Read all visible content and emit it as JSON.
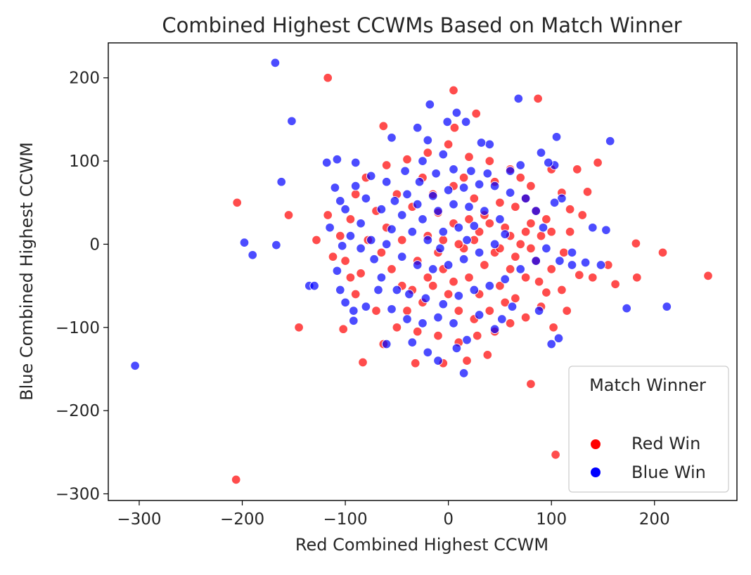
{
  "chart_data": {
    "type": "scatter",
    "title": "Combined Highest CCWMs Based on Match Winner",
    "xlabel": "Red Combined Highest CCWM",
    "ylabel": "Blue Combined Highest CCWM",
    "xlim": [
      -330,
      280
    ],
    "ylim": [
      -308,
      242
    ],
    "xticks": [
      -300,
      -200,
      -100,
      0,
      100,
      200
    ],
    "yticks": [
      -300,
      -200,
      -100,
      0,
      100,
      200
    ],
    "xtick_labels": [
      "−300",
      "−200",
      "−100",
      "0",
      "100",
      "200"
    ],
    "ytick_labels": [
      "−300",
      "−200",
      "−100",
      "0",
      "100",
      "200"
    ],
    "grid": false,
    "legend": {
      "title": "Match Winner",
      "placement": "lower-right",
      "entries": [
        {
          "label": "Red Win",
          "color": "#ff0000"
        },
        {
          "label": "Blue Win",
          "color": "#0000ff"
        }
      ]
    },
    "series": [
      {
        "name": "Red Win",
        "color": "#ff0000",
        "points": [
          [
            -117,
            200
          ],
          [
            5,
            185
          ],
          [
            87,
            175
          ],
          [
            27,
            157
          ],
          [
            -63,
            142
          ],
          [
            6,
            140
          ],
          [
            -205,
            50
          ],
          [
            -155,
            35
          ],
          [
            -145,
            -100
          ],
          [
            -206,
            -283
          ],
          [
            -117,
            35
          ],
          [
            -128,
            5
          ],
          [
            -112,
            -15
          ],
          [
            -102,
            -102
          ],
          [
            -83,
            -142
          ],
          [
            -63,
            -120
          ],
          [
            -32,
            -143
          ],
          [
            -5,
            -143
          ],
          [
            18,
            -140
          ],
          [
            38,
            -133
          ],
          [
            80,
            -168
          ],
          [
            104,
            -253
          ],
          [
            102,
            -100
          ],
          [
            115,
            -80
          ],
          [
            127,
            -37
          ],
          [
            140,
            -40
          ],
          [
            155,
            -25
          ],
          [
            162,
            -48
          ],
          [
            183,
            -40
          ],
          [
            182,
            1
          ],
          [
            208,
            -10
          ],
          [
            252,
            -38
          ],
          [
            135,
            63
          ],
          [
            145,
            98
          ],
          [
            125,
            90
          ],
          [
            130,
            35
          ],
          [
            118,
            42
          ],
          [
            100,
            90
          ],
          [
            110,
            62
          ],
          [
            118,
            15
          ],
          [
            112,
            -10
          ],
          [
            100,
            -30
          ],
          [
            95,
            -58
          ],
          [
            110,
            -55
          ],
          [
            90,
            -75
          ],
          [
            75,
            -88
          ],
          [
            60,
            -95
          ],
          [
            45,
            -105
          ],
          [
            28,
            -110
          ],
          [
            10,
            -118
          ],
          [
            -10,
            -110
          ],
          [
            -30,
            -105
          ],
          [
            -50,
            -100
          ],
          [
            -70,
            -80
          ],
          [
            -90,
            -60
          ],
          [
            -95,
            -40
          ],
          [
            -100,
            -20
          ],
          [
            -105,
            10
          ],
          [
            -95,
            30
          ],
          [
            -90,
            60
          ],
          [
            -80,
            80
          ],
          [
            -60,
            95
          ],
          [
            -40,
            102
          ],
          [
            -20,
            110
          ],
          [
            0,
            120
          ],
          [
            20,
            105
          ],
          [
            40,
            100
          ],
          [
            60,
            90
          ],
          [
            80,
            70
          ],
          [
            -10,
            38
          ],
          [
            -20,
            10
          ],
          [
            5,
            25
          ],
          [
            15,
            -5
          ],
          [
            30,
            15
          ],
          [
            45,
            -10
          ],
          [
            55,
            20
          ],
          [
            70,
            0
          ],
          [
            80,
            25
          ],
          [
            90,
            10
          ],
          [
            -30,
            -20
          ],
          [
            -45,
            5
          ],
          [
            -55,
            -30
          ],
          [
            -60,
            20
          ],
          [
            -70,
            40
          ],
          [
            -35,
            45
          ],
          [
            -15,
            60
          ],
          [
            5,
            70
          ],
          [
            25,
            55
          ],
          [
            35,
            35
          ],
          [
            50,
            50
          ],
          [
            65,
            45
          ],
          [
            75,
            55
          ],
          [
            85,
            40
          ],
          [
            95,
            30
          ],
          [
            100,
            15
          ],
          [
            20,
            -40
          ],
          [
            0,
            -60
          ],
          [
            -15,
            -50
          ],
          [
            -25,
            -70
          ],
          [
            10,
            -80
          ],
          [
            30,
            -60
          ],
          [
            50,
            -50
          ],
          [
            60,
            -30
          ],
          [
            75,
            -40
          ],
          [
            85,
            -20
          ],
          [
            40,
            -80
          ],
          [
            55,
            -70
          ],
          [
            -5,
            -30
          ],
          [
            -45,
            -50
          ],
          [
            -65,
            -10
          ],
          [
            -78,
            5
          ],
          [
            -85,
            -35
          ],
          [
            15,
            80
          ],
          [
            -50,
            60
          ],
          [
            45,
            75
          ],
          [
            70,
            80
          ],
          [
            -25,
            80
          ],
          [
            -40,
            -80
          ],
          [
            25,
            -90
          ],
          [
            65,
            -65
          ],
          [
            88,
            -45
          ],
          [
            -5,
            5
          ],
          [
            10,
            0
          ],
          [
            25,
            5
          ],
          [
            40,
            25
          ],
          [
            60,
            10
          ],
          [
            75,
            15
          ],
          [
            20,
            30
          ],
          [
            -10,
            -10
          ],
          [
            35,
            -25
          ],
          [
            50,
            -5
          ],
          [
            65,
            -15
          ],
          [
            80,
            -5
          ],
          [
            -20,
            -40
          ],
          [
            -35,
            -55
          ],
          [
            5,
            -45
          ]
        ]
      },
      {
        "name": "Blue Win",
        "color": "#0000ff",
        "points": [
          [
            -168,
            218
          ],
          [
            -152,
            148
          ],
          [
            -162,
            75
          ],
          [
            -198,
            2
          ],
          [
            -190,
            -13
          ],
          [
            -167,
            -1
          ],
          [
            -135,
            -50
          ],
          [
            -304,
            -146
          ],
          [
            68,
            175
          ],
          [
            -18,
            168
          ],
          [
            8,
            158
          ],
          [
            17,
            147
          ],
          [
            -1,
            147
          ],
          [
            -20,
            125
          ],
          [
            -30,
            140
          ],
          [
            -55,
            128
          ],
          [
            -90,
            98
          ],
          [
            -118,
            98
          ],
          [
            -108,
            102
          ],
          [
            -110,
            68
          ],
          [
            -105,
            52
          ],
          [
            -115,
            20
          ],
          [
            -100,
            42
          ],
          [
            -103,
            -2
          ],
          [
            -108,
            -32
          ],
          [
            -105,
            -55
          ],
          [
            -92,
            -80
          ],
          [
            -92,
            -92
          ],
          [
            -80,
            -75
          ],
          [
            -60,
            -120
          ],
          [
            -35,
            -118
          ],
          [
            -20,
            -130
          ],
          [
            -10,
            -140
          ],
          [
            15,
            -155
          ],
          [
            8,
            -125
          ],
          [
            18,
            -115
          ],
          [
            45,
            -102
          ],
          [
            52,
            -90
          ],
          [
            88,
            -80
          ],
          [
            100,
            -120
          ],
          [
            107,
            -113
          ],
          [
            108,
            -20
          ],
          [
            120,
            -25
          ],
          [
            133,
            -22
          ],
          [
            140,
            20
          ],
          [
            153,
            17
          ],
          [
            157,
            124
          ],
          [
            105,
            129
          ],
          [
            103,
            95
          ],
          [
            97,
            98
          ],
          [
            90,
            110
          ],
          [
            70,
            95
          ],
          [
            60,
            88
          ],
          [
            40,
            120
          ],
          [
            32,
            122
          ],
          [
            -5,
            108
          ],
          [
            -25,
            100
          ],
          [
            -42,
            88
          ],
          [
            -60,
            75
          ],
          [
            -75,
            82
          ],
          [
            -80,
            55
          ],
          [
            -85,
            25
          ],
          [
            -75,
            5
          ],
          [
            -72,
            -18
          ],
          [
            -65,
            -40
          ],
          [
            -50,
            -55
          ],
          [
            -38,
            -60
          ],
          [
            -22,
            -65
          ],
          [
            -5,
            -72
          ],
          [
            10,
            -62
          ],
          [
            25,
            -55
          ],
          [
            40,
            -50
          ],
          [
            55,
            -42
          ],
          [
            70,
            -30
          ],
          [
            85,
            -20
          ],
          [
            95,
            -5
          ],
          [
            92,
            20
          ],
          [
            85,
            40
          ],
          [
            75,
            55
          ],
          [
            60,
            62
          ],
          [
            45,
            70
          ],
          [
            30,
            72
          ],
          [
            15,
            68
          ],
          [
            0,
            65
          ],
          [
            -15,
            58
          ],
          [
            -30,
            48
          ],
          [
            -45,
            35
          ],
          [
            -55,
            18
          ],
          [
            -60,
            0
          ],
          [
            -45,
            -15
          ],
          [
            -30,
            -25
          ],
          [
            -15,
            -30
          ],
          [
            0,
            -25
          ],
          [
            15,
            -18
          ],
          [
            30,
            -10
          ],
          [
            45,
            0
          ],
          [
            55,
            12
          ],
          [
            50,
            30
          ],
          [
            35,
            40
          ],
          [
            20,
            45
          ],
          [
            5,
            48
          ],
          [
            -10,
            40
          ],
          [
            -25,
            30
          ],
          [
            -35,
            15
          ],
          [
            -20,
            5
          ],
          [
            -5,
            15
          ],
          [
            10,
            20
          ],
          [
            25,
            22
          ],
          [
            18,
            5
          ],
          [
            -8,
            -5
          ],
          [
            -40,
            60
          ],
          [
            -28,
            75
          ],
          [
            -12,
            85
          ],
          [
            5,
            90
          ],
          [
            22,
            88
          ],
          [
            38,
            85
          ],
          [
            -65,
            42
          ],
          [
            -52,
            52
          ],
          [
            -68,
            -55
          ],
          [
            -55,
            -78
          ],
          [
            -40,
            -90
          ],
          [
            -25,
            -95
          ],
          [
            -10,
            -88
          ],
          [
            5,
            -95
          ],
          [
            30,
            -85
          ],
          [
            62,
            -75
          ],
          [
            173,
            -77
          ],
          [
            212,
            -75
          ],
          [
            148,
            -25
          ],
          [
            120,
            -10
          ],
          [
            -130,
            -50
          ],
          [
            -95,
            10
          ],
          [
            -100,
            -70
          ],
          [
            -85,
            -5
          ],
          [
            110,
            55
          ],
          [
            103,
            50
          ],
          [
            -90,
            70
          ]
        ]
      }
    ]
  }
}
